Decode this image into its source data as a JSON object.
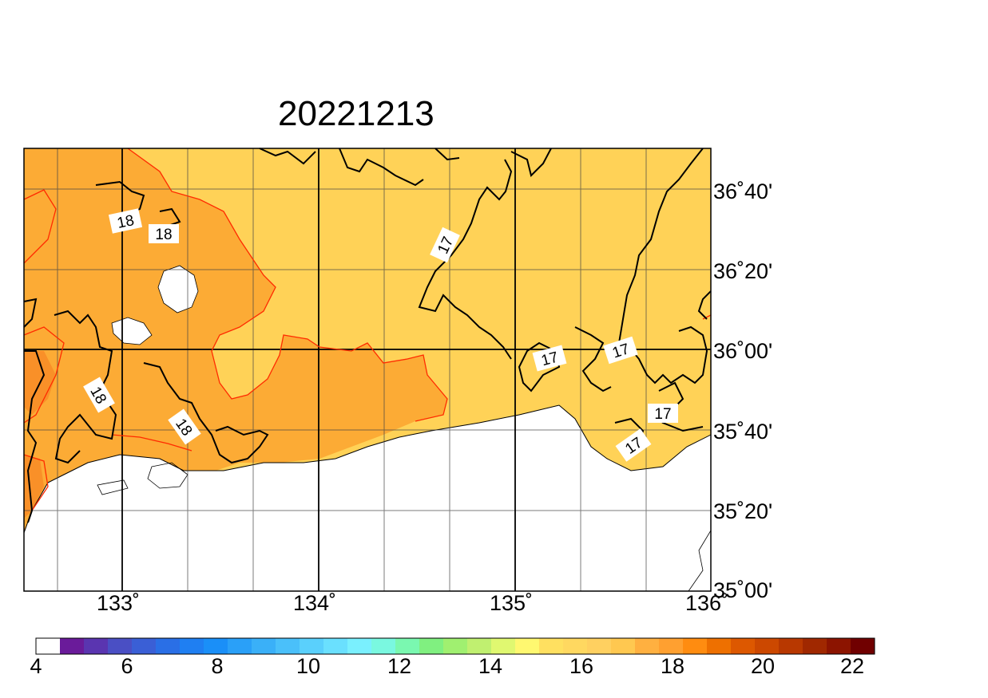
{
  "title": "20221213",
  "lon_ticks": [
    "133˚",
    "134˚",
    "135˚",
    "136˚"
  ],
  "lat_ticks": [
    "36˚40'",
    "36˚20'",
    "36˚00'",
    "35˚40'",
    "35˚20'",
    "35˚00'"
  ],
  "contour_labels": [
    "18",
    "18",
    "17",
    "18",
    "18",
    "17",
    "17",
    "17",
    "17"
  ],
  "colorbar": {
    "labels": [
      "4",
      "6",
      "8",
      "10",
      "12",
      "14",
      "16",
      "18",
      "20",
      "22"
    ],
    "colors": [
      "#ffffff",
      "#6a1b9a",
      "#5a35b0",
      "#4a4fc4",
      "#3a5fd6",
      "#2a6fe6",
      "#1f7ff2",
      "#1a8ff8",
      "#2aa0f8",
      "#3ab0f8",
      "#4ac0fa",
      "#5ad0fc",
      "#6ae0fe",
      "#7af0fe",
      "#7af8e0",
      "#7af8b0",
      "#80f080",
      "#a0f070",
      "#c0f070",
      "#e0f870",
      "#fff870",
      "#ffe060",
      "#ffd860",
      "#ffd060",
      "#ffc850",
      "#ffb040",
      "#ffa030",
      "#ff8c10",
      "#ee7000",
      "#dd5800",
      "#cc4800",
      "#b83800",
      "#a02800",
      "#8c1400",
      "#700000"
    ]
  },
  "colors": {
    "field_17": "#ffd257",
    "field_18": "#fcab35",
    "field_19": "#f99028",
    "contour_19": "#ff2a00",
    "contour_main": "#000000"
  }
}
